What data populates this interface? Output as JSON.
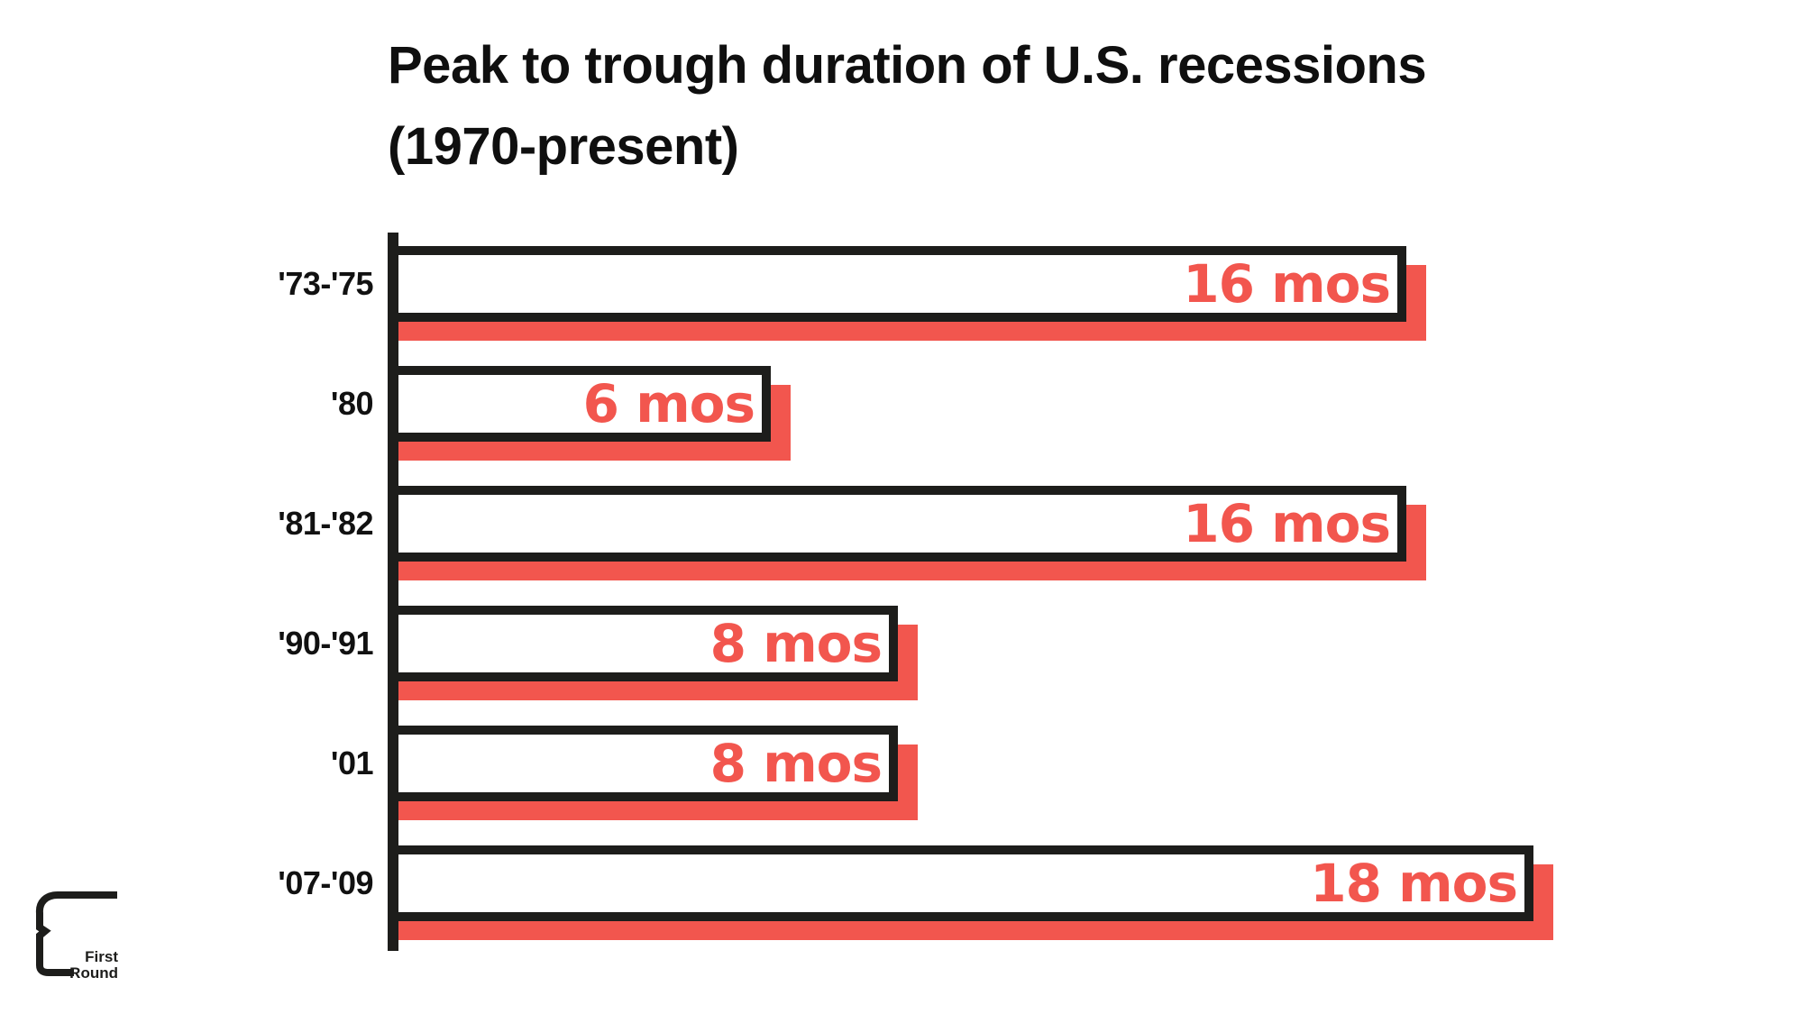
{
  "title": {
    "line1": "Peak to trough duration of U.S. recessions",
    "line2": "(1970-present)"
  },
  "chart_data": {
    "type": "bar",
    "orientation": "horizontal",
    "title": "Peak to trough duration of U.S. recessions (1970-present)",
    "categories": [
      "'73-'75",
      "'80",
      "'81-'82",
      "'90-'91",
      "'01",
      "'07-'09"
    ],
    "values": [
      16,
      6,
      16,
      8,
      8,
      18
    ],
    "value_labels": [
      "16 mos",
      "6 mos",
      "16 mos",
      "8 mos",
      "8 mos",
      "18 mos"
    ],
    "unit": "months",
    "xlim": [
      0,
      18
    ],
    "grid": false,
    "legend": false,
    "colors": {
      "bar_fill": "#ffffff",
      "bar_border": "#1d1d1b",
      "bar_shadow": "#f2564e",
      "value_text": "#f2564e",
      "category_text": "#111111",
      "axis": "#1d1d1b"
    }
  },
  "logo": {
    "line1": "First",
    "line2": "Round"
  }
}
